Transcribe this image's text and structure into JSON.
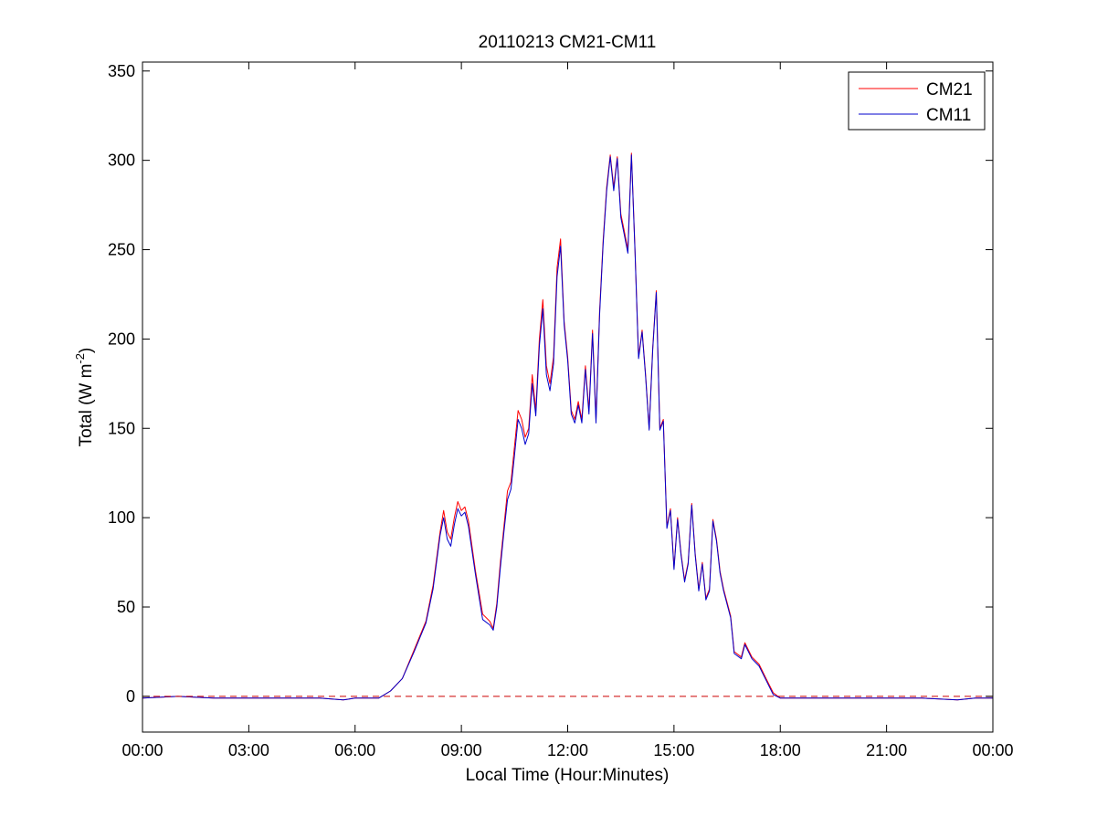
{
  "chart_data": {
    "type": "line",
    "title": "20110213 CM21-CM11",
    "xlabel": "Local Time (Hour:Minutes)",
    "ylabel": "Total (W m",
    "ylabel_sup": "-2",
    "ylabel_close": ")",
    "xlim": [
      "00:00",
      "24:00"
    ],
    "ylim": [
      -20,
      355
    ],
    "x_ticks": [
      {
        "value": "00:00",
        "label": "00:00"
      },
      {
        "value": "03:00",
        "label": "03:00"
      },
      {
        "value": "06:00",
        "label": "06:00"
      },
      {
        "value": "09:00",
        "label": "09:00"
      },
      {
        "value": "12:00",
        "label": "12:00"
      },
      {
        "value": "15:00",
        "label": "15:00"
      },
      {
        "value": "18:00",
        "label": "18:00"
      },
      {
        "value": "21:00",
        "label": "21:00"
      },
      {
        "value": "24:00",
        "label": "00:00"
      }
    ],
    "y_ticks": [
      0,
      50,
      100,
      150,
      200,
      250,
      300,
      350
    ],
    "grid": false,
    "legend_position": "top-right",
    "reference_line": {
      "y": 0,
      "style": "dashed",
      "color": "#cc0000"
    },
    "series": [
      {
        "name": "CM21",
        "color": "#ff0000",
        "points": [
          [
            "00:00",
            -1
          ],
          [
            "01:00",
            0
          ],
          [
            "02:00",
            -1
          ],
          [
            "03:00",
            -1
          ],
          [
            "04:00",
            -1
          ],
          [
            "05:00",
            -1
          ],
          [
            "05:40",
            -2
          ],
          [
            "06:00",
            -1
          ],
          [
            "06:40",
            -1
          ],
          [
            "07:00",
            3
          ],
          [
            "07:20",
            10
          ],
          [
            "07:40",
            26
          ],
          [
            "08:00",
            42
          ],
          [
            "08:12",
            62
          ],
          [
            "08:24",
            92
          ],
          [
            "08:30",
            104
          ],
          [
            "08:36",
            92
          ],
          [
            "08:42",
            88
          ],
          [
            "08:48",
            100
          ],
          [
            "08:54",
            109
          ],
          [
            "09:00",
            104
          ],
          [
            "09:06",
            106
          ],
          [
            "09:12",
            98
          ],
          [
            "09:24",
            70
          ],
          [
            "09:36",
            46
          ],
          [
            "09:48",
            42
          ],
          [
            "09:54",
            38
          ],
          [
            "10:00",
            52
          ],
          [
            "10:06",
            75
          ],
          [
            "10:12",
            95
          ],
          [
            "10:18",
            115
          ],
          [
            "10:24",
            120
          ],
          [
            "10:30",
            140
          ],
          [
            "10:36",
            160
          ],
          [
            "10:42",
            155
          ],
          [
            "10:48",
            145
          ],
          [
            "10:54",
            150
          ],
          [
            "11:00",
            180
          ],
          [
            "11:06",
            160
          ],
          [
            "11:12",
            200
          ],
          [
            "11:18",
            222
          ],
          [
            "11:24",
            185
          ],
          [
            "11:30",
            175
          ],
          [
            "11:36",
            190
          ],
          [
            "11:42",
            240
          ],
          [
            "11:48",
            256
          ],
          [
            "11:54",
            210
          ],
          [
            "12:00",
            190
          ],
          [
            "12:06",
            160
          ],
          [
            "12:12",
            155
          ],
          [
            "12:18",
            165
          ],
          [
            "12:24",
            155
          ],
          [
            "12:30",
            185
          ],
          [
            "12:36",
            160
          ],
          [
            "12:42",
            205
          ],
          [
            "12:48",
            155
          ],
          [
            "12:54",
            215
          ],
          [
            "13:00",
            255
          ],
          [
            "13:06",
            285
          ],
          [
            "13:12",
            303
          ],
          [
            "13:18",
            285
          ],
          [
            "13:24",
            302
          ],
          [
            "13:30",
            270
          ],
          [
            "13:36",
            260
          ],
          [
            "13:42",
            250
          ],
          [
            "13:48",
            304
          ],
          [
            "13:54",
            250
          ],
          [
            "14:00",
            190
          ],
          [
            "14:06",
            205
          ],
          [
            "14:12",
            180
          ],
          [
            "14:18",
            150
          ],
          [
            "14:24",
            195
          ],
          [
            "14:30",
            227
          ],
          [
            "14:36",
            150
          ],
          [
            "14:42",
            155
          ],
          [
            "14:48",
            95
          ],
          [
            "14:54",
            105
          ],
          [
            "15:00",
            72
          ],
          [
            "15:06",
            100
          ],
          [
            "15:12",
            80
          ],
          [
            "15:18",
            65
          ],
          [
            "15:24",
            75
          ],
          [
            "15:30",
            108
          ],
          [
            "15:36",
            80
          ],
          [
            "15:42",
            60
          ],
          [
            "15:48",
            75
          ],
          [
            "15:54",
            55
          ],
          [
            "16:00",
            60
          ],
          [
            "16:06",
            99
          ],
          [
            "16:12",
            88
          ],
          [
            "16:18",
            70
          ],
          [
            "16:24",
            60
          ],
          [
            "16:36",
            45
          ],
          [
            "16:42",
            25
          ],
          [
            "16:54",
            22
          ],
          [
            "17:00",
            30
          ],
          [
            "17:12",
            22
          ],
          [
            "17:24",
            18
          ],
          [
            "17:36",
            10
          ],
          [
            "17:48",
            2
          ],
          [
            "18:00",
            -1
          ],
          [
            "19:00",
            -1
          ],
          [
            "20:00",
            -1
          ],
          [
            "21:00",
            -1
          ],
          [
            "22:00",
            -1
          ],
          [
            "23:00",
            -2
          ],
          [
            "23:30",
            -1
          ],
          [
            "24:00",
            -1
          ]
        ]
      },
      {
        "name": "CM11",
        "color": "#0000cc",
        "points": [
          [
            "00:00",
            -1
          ],
          [
            "01:00",
            0
          ],
          [
            "02:00",
            -1
          ],
          [
            "03:00",
            -1
          ],
          [
            "04:00",
            -1
          ],
          [
            "05:00",
            -1
          ],
          [
            "05:40",
            -2
          ],
          [
            "06:00",
            -1
          ],
          [
            "06:40",
            -1
          ],
          [
            "07:00",
            3
          ],
          [
            "07:20",
            10
          ],
          [
            "07:40",
            25
          ],
          [
            "08:00",
            41
          ],
          [
            "08:12",
            60
          ],
          [
            "08:24",
            90
          ],
          [
            "08:30",
            100
          ],
          [
            "08:36",
            88
          ],
          [
            "08:42",
            84
          ],
          [
            "08:48",
            96
          ],
          [
            "08:54",
            105
          ],
          [
            "09:00",
            101
          ],
          [
            "09:06",
            103
          ],
          [
            "09:12",
            95
          ],
          [
            "09:24",
            68
          ],
          [
            "09:36",
            43
          ],
          [
            "09:48",
            40
          ],
          [
            "09:54",
            37
          ],
          [
            "10:00",
            50
          ],
          [
            "10:06",
            72
          ],
          [
            "10:12",
            92
          ],
          [
            "10:18",
            110
          ],
          [
            "10:24",
            116
          ],
          [
            "10:30",
            135
          ],
          [
            "10:36",
            155
          ],
          [
            "10:42",
            150
          ],
          [
            "10:48",
            141
          ],
          [
            "10:54",
            147
          ],
          [
            "11:00",
            175
          ],
          [
            "11:06",
            157
          ],
          [
            "11:12",
            196
          ],
          [
            "11:18",
            217
          ],
          [
            "11:24",
            180
          ],
          [
            "11:30",
            171
          ],
          [
            "11:36",
            186
          ],
          [
            "11:42",
            235
          ],
          [
            "11:48",
            252
          ],
          [
            "11:54",
            208
          ],
          [
            "12:00",
            188
          ],
          [
            "12:06",
            158
          ],
          [
            "12:12",
            153
          ],
          [
            "12:18",
            163
          ],
          [
            "12:24",
            153
          ],
          [
            "12:30",
            183
          ],
          [
            "12:36",
            158
          ],
          [
            "12:42",
            203
          ],
          [
            "12:48",
            153
          ],
          [
            "12:54",
            213
          ],
          [
            "13:00",
            253
          ],
          [
            "13:06",
            283
          ],
          [
            "13:12",
            302
          ],
          [
            "13:18",
            283
          ],
          [
            "13:24",
            301
          ],
          [
            "13:30",
            268
          ],
          [
            "13:36",
            258
          ],
          [
            "13:42",
            248
          ],
          [
            "13:48",
            303
          ],
          [
            "13:54",
            249
          ],
          [
            "14:00",
            189
          ],
          [
            "14:06",
            204
          ],
          [
            "14:12",
            179
          ],
          [
            "14:18",
            149
          ],
          [
            "14:24",
            194
          ],
          [
            "14:30",
            226
          ],
          [
            "14:36",
            149
          ],
          [
            "14:42",
            154
          ],
          [
            "14:48",
            94
          ],
          [
            "14:54",
            104
          ],
          [
            "15:00",
            71
          ],
          [
            "15:06",
            99
          ],
          [
            "15:12",
            79
          ],
          [
            "15:18",
            64
          ],
          [
            "15:24",
            74
          ],
          [
            "15:30",
            107
          ],
          [
            "15:36",
            79
          ],
          [
            "15:42",
            59
          ],
          [
            "15:48",
            74
          ],
          [
            "15:54",
            54
          ],
          [
            "16:00",
            59
          ],
          [
            "16:06",
            98
          ],
          [
            "16:12",
            87
          ],
          [
            "16:18",
            69
          ],
          [
            "16:24",
            59
          ],
          [
            "16:36",
            44
          ],
          [
            "16:42",
            24
          ],
          [
            "16:54",
            21
          ],
          [
            "17:00",
            29
          ],
          [
            "17:12",
            21
          ],
          [
            "17:24",
            17
          ],
          [
            "17:36",
            9
          ],
          [
            "17:48",
            1
          ],
          [
            "18:00",
            -1
          ],
          [
            "19:00",
            -1
          ],
          [
            "20:00",
            -1
          ],
          [
            "21:00",
            -1
          ],
          [
            "22:00",
            -1
          ],
          [
            "23:00",
            -2
          ],
          [
            "23:30",
            -1
          ],
          [
            "24:00",
            -1
          ]
        ]
      }
    ]
  }
}
